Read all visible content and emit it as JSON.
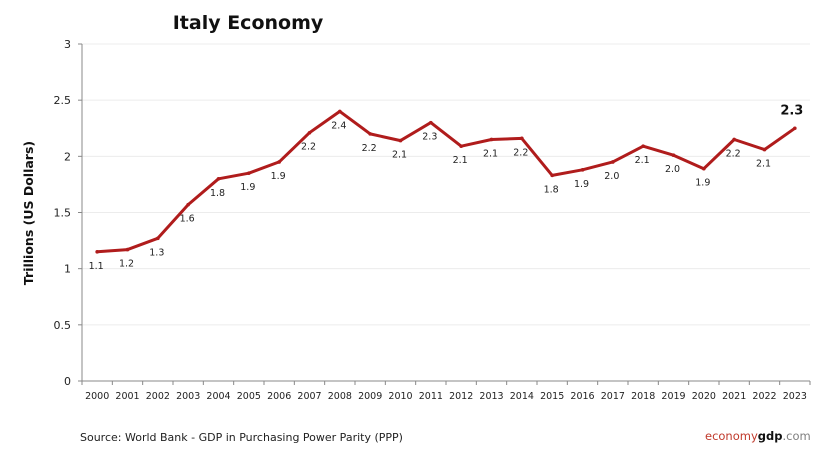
{
  "chart_data": {
    "type": "line",
    "title": "Italy Economy",
    "xlabel": "",
    "ylabel": "Trillions (US Dollars)",
    "ylim": [
      0,
      3
    ],
    "yticks": [
      0,
      0.5,
      1,
      1.5,
      2,
      2.5,
      3
    ],
    "ytick_labels": [
      "0",
      "0.5",
      "1",
      "1.5",
      "2",
      "2.5",
      "3"
    ],
    "grid": true,
    "legend": "none",
    "categories": [
      "2000",
      "2001",
      "2002",
      "2003",
      "2004",
      "2005",
      "2006",
      "2007",
      "2008",
      "2009",
      "2010",
      "2011",
      "2012",
      "2013",
      "2014",
      "2015",
      "2016",
      "2017",
      "2018",
      "2019",
      "2020",
      "2021",
      "2022",
      "2023"
    ],
    "series": [
      {
        "name": "GDP (PPP)",
        "color": "#b01c1c",
        "values": [
          1.15,
          1.17,
          1.27,
          1.57,
          1.8,
          1.85,
          1.95,
          2.21,
          2.4,
          2.2,
          2.14,
          2.3,
          2.09,
          2.15,
          2.16,
          1.83,
          1.88,
          1.95,
          2.09,
          2.01,
          1.89,
          2.15,
          2.06,
          2.25
        ],
        "data_labels": [
          "1.1",
          "1.2",
          "1.3",
          "1.6",
          "1.8",
          "1.9",
          "1.9",
          "2.2",
          "2.4",
          "2.2",
          "2.1",
          "2.3",
          "2.1",
          "2.1",
          "2.2",
          "1.8",
          "1.9",
          "2.0",
          "2.1",
          "2.0",
          "1.9",
          "2.2",
          "2.1",
          "2.3"
        ]
      }
    ]
  },
  "footer": {
    "source": "Source:  World Bank -  GDP  in Purchasing Power Parity (PPP)",
    "brand_part1": "economy",
    "brand_part2": "gdp",
    "brand_part3": ".com"
  }
}
